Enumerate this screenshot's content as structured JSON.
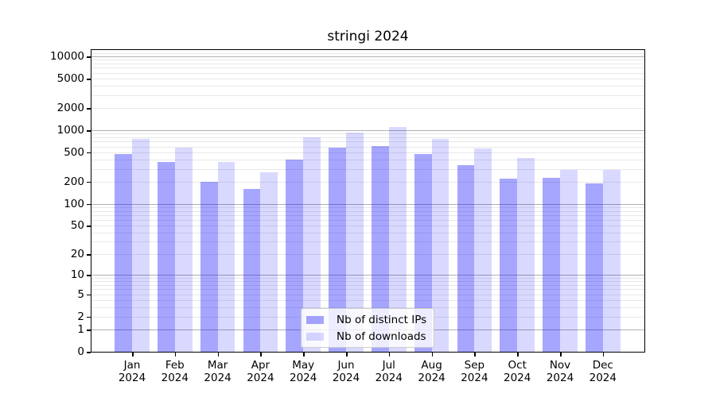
{
  "chart_data": {
    "type": "bar",
    "title": "stringi 2024",
    "categories": [
      "Jan",
      "Feb",
      "Mar",
      "Apr",
      "May",
      "Jun",
      "Jul",
      "Aug",
      "Sep",
      "Oct",
      "Nov",
      "Dec"
    ],
    "x_year": "2024",
    "series": [
      {
        "name": "Nb of distinct IPs",
        "color": "#0000ff59",
        "values": [
          475,
          375,
          200,
          160,
          400,
          575,
          610,
          480,
          340,
          222,
          226,
          190
        ]
      },
      {
        "name": "Nb of downloads",
        "color": "#0000ff26",
        "values": [
          760,
          585,
          372,
          268,
          800,
          930,
          1100,
          765,
          560,
          420,
          290,
          290
        ]
      }
    ],
    "yscale": "log1p",
    "ylim": [
      0,
      12200
    ],
    "yticks": [
      {
        "value": 0,
        "label": "0"
      },
      {
        "value": 1,
        "label": "1"
      },
      {
        "value": 2,
        "label": "2"
      },
      {
        "value": 5,
        "label": "5"
      },
      {
        "value": 10,
        "label": "10"
      },
      {
        "value": 20,
        "label": "20"
      },
      {
        "value": 50,
        "label": "50"
      },
      {
        "value": 100,
        "label": "100"
      },
      {
        "value": 200,
        "label": "200"
      },
      {
        "value": 500,
        "label": "500"
      },
      {
        "value": 1000,
        "label": "1000"
      },
      {
        "value": 2000,
        "label": "2000"
      },
      {
        "value": 5000,
        "label": "5000"
      },
      {
        "value": 10000,
        "label": "10000"
      }
    ],
    "grid": {
      "major": [
        1,
        10,
        100,
        1000,
        10000
      ],
      "minor": [
        2,
        3,
        4,
        5,
        6,
        7,
        8,
        9,
        20,
        30,
        40,
        50,
        60,
        70,
        80,
        90,
        200,
        300,
        400,
        500,
        600,
        700,
        800,
        900,
        2000,
        3000,
        4000,
        5000,
        6000,
        7000,
        8000,
        9000,
        11000
      ]
    },
    "legend_position": "inside bottom-center",
    "colors": {
      "grid_major": "#b0b0b0",
      "grid_minor": "#e8e8e8",
      "spine": "#000000"
    }
  }
}
